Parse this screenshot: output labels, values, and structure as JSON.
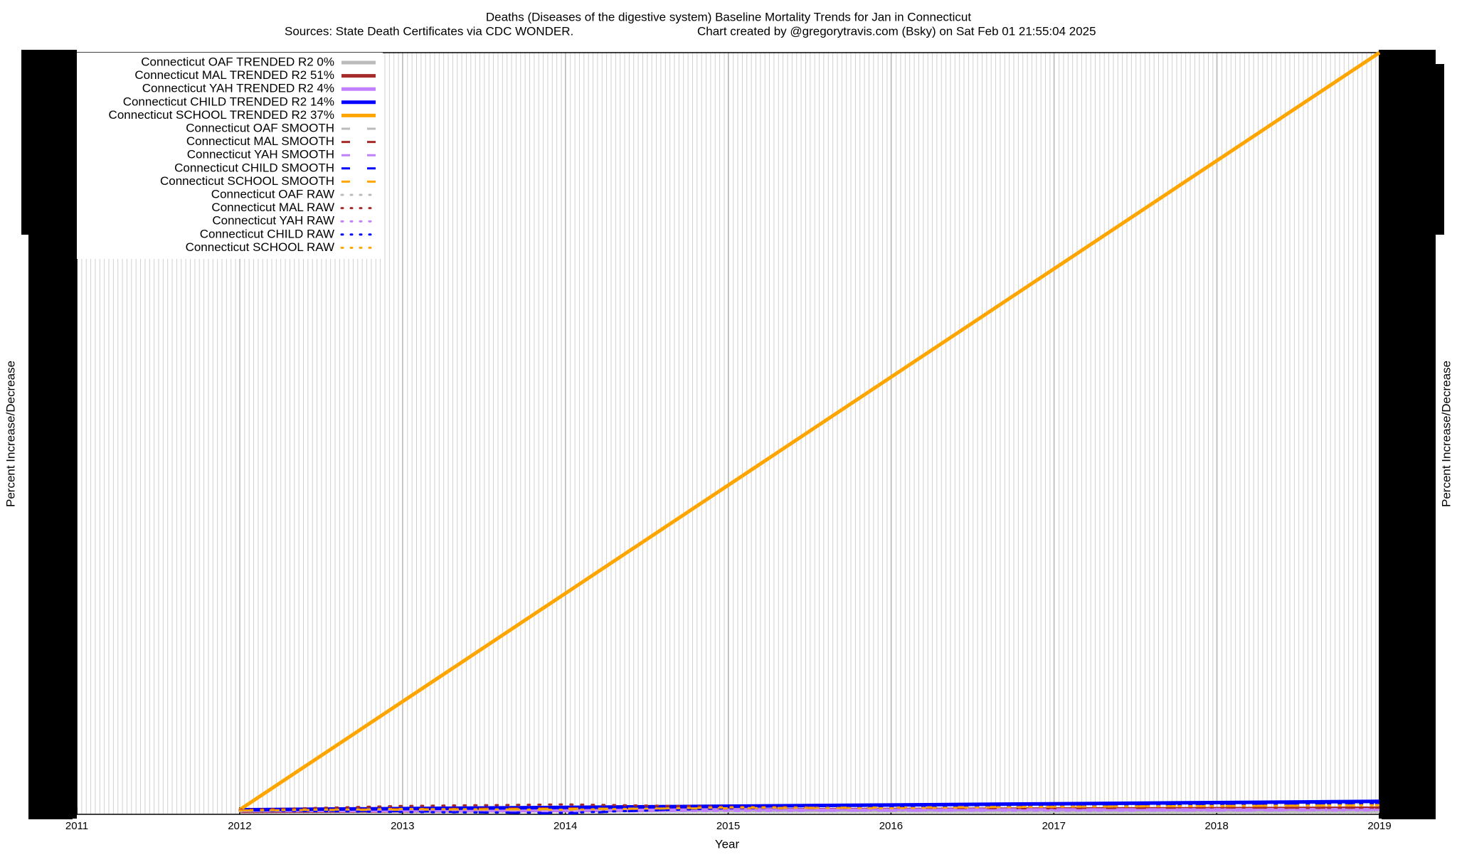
{
  "chart_data": {
    "type": "line",
    "title": "Deaths (Diseases of the digestive system)  Baseline Mortality Trends for Jan in Connecticut",
    "subtitle": "Sources: State Death Certificates via CDC WONDER.",
    "annotation": "Chart created by @gregorytravis.com (Bsky) on Sat Feb 01 21:55:04 2025",
    "x_label": "Year",
    "y_label": "Percent Increase/Decrease",
    "xlim": [
      2011,
      2019
    ],
    "xticks": [
      2011,
      2012,
      2013,
      2014,
      2015,
      2016,
      2017,
      2018,
      2019
    ],
    "ylim": [
      0,
      100
    ],
    "grid": true,
    "legend": "upper left",
    "series": [
      {
        "name": "Connecticut OAF TRENDED R2  0%",
        "color": "#bbbbbb",
        "style": "solid",
        "x": [
          2012,
          2019
        ],
        "values": [
          0.5,
          0.4
        ]
      },
      {
        "name": "Connecticut MAL TRENDED R2  51%",
        "color": "#a52a2a",
        "style": "solid",
        "x": [
          2012,
          2019
        ],
        "values": [
          0.4,
          0.8
        ]
      },
      {
        "name": "Connecticut YAH TRENDED R2  4%",
        "color": "#c080ff",
        "style": "solid",
        "x": [
          2012,
          2019
        ],
        "values": [
          0.5,
          0.6
        ]
      },
      {
        "name": "Connecticut CHILD TRENDED R2  14%",
        "color": "#0000ff",
        "style": "solid",
        "x": [
          2012,
          2019
        ],
        "values": [
          0.6,
          1.7
        ]
      },
      {
        "name": "Connecticut SCHOOL TRENDED R2  37%",
        "color": "#ffa500",
        "style": "solid",
        "x": [
          2012,
          2019
        ],
        "values": [
          0.6,
          100
        ]
      },
      {
        "name": "Connecticut OAF SMOOTH",
        "color": "#bbbbbb",
        "style": "dashed",
        "x": [
          2012,
          2013,
          2014,
          2015,
          2016,
          2017,
          2018,
          2019
        ],
        "values": [
          0.5,
          0.5,
          0.4,
          0.5,
          0.4,
          0.5,
          0.4,
          0.4
        ]
      },
      {
        "name": "Connecticut MAL SMOOTH",
        "color": "#a52a2a",
        "style": "dashed",
        "x": [
          2012,
          2013,
          2014,
          2015,
          2016,
          2017,
          2018,
          2019
        ],
        "values": [
          0.5,
          0.7,
          0.8,
          0.6,
          0.7,
          0.8,
          0.9,
          0.8
        ]
      },
      {
        "name": "Connecticut YAH SMOOTH",
        "color": "#c080ff",
        "style": "dashed",
        "x": [
          2012,
          2013,
          2014,
          2015,
          2016,
          2017,
          2018,
          2019
        ],
        "values": [
          0.5,
          0.4,
          0.3,
          0.5,
          0.6,
          0.5,
          0.6,
          0.6
        ]
      },
      {
        "name": "Connecticut CHILD SMOOTH",
        "color": "#0000ff",
        "style": "dashed",
        "x": [
          2012,
          2013,
          2014,
          2015,
          2016,
          2017,
          2018,
          2019
        ],
        "values": [
          0.5,
          0.4,
          0.1,
          0.9,
          1.0,
          1.1,
          1.3,
          1.5
        ]
      },
      {
        "name": "Connecticut SCHOOL SMOOTH",
        "color": "#ffa500",
        "style": "dashed",
        "x": [
          2012,
          2013,
          2014,
          2015,
          2016,
          2017,
          2018,
          2019
        ],
        "values": [
          0.5,
          0.6,
          0.7,
          0.8,
          0.9,
          1.0,
          1.1,
          1.2
        ]
      },
      {
        "name": "Connecticut OAF RAW",
        "color": "#bbbbbb",
        "style": "dotted",
        "x": [
          2012,
          2013,
          2014,
          2015,
          2016,
          2017,
          2018,
          2019
        ],
        "values": [
          0.4,
          0.6,
          0.5,
          0.4,
          0.5,
          0.4,
          0.5,
          0.4
        ]
      },
      {
        "name": "Connecticut MAL RAW",
        "color": "#a52a2a",
        "style": "dotted",
        "x": [
          2012,
          2013,
          2014,
          2015,
          2016,
          2017,
          2018,
          2019
        ],
        "values": [
          0.6,
          1.1,
          1.3,
          1.0,
          0.9,
          1.0,
          0.9,
          0.8
        ]
      },
      {
        "name": "Connecticut YAH RAW",
        "color": "#c080ff",
        "style": "dotted",
        "x": [
          2012,
          2013,
          2014,
          2015,
          2016,
          2017,
          2018,
          2019
        ],
        "values": [
          0.5,
          0.5,
          0.4,
          0.6,
          0.5,
          0.6,
          0.5,
          0.6
        ]
      },
      {
        "name": "Connecticut CHILD RAW",
        "color": "#0000ff",
        "style": "dotted",
        "x": [
          2012,
          2013,
          2014,
          2015,
          2016,
          2017,
          2018,
          2019
        ],
        "values": [
          0.5,
          0.3,
          0.2,
          0.8,
          1.0,
          1.1,
          1.2,
          1.4
        ]
      },
      {
        "name": "Connecticut SCHOOL RAW",
        "color": "#ffa500",
        "style": "dotted",
        "x": [
          2012,
          2013,
          2014,
          2015,
          2016,
          2017,
          2018,
          2019
        ],
        "values": [
          0.5,
          0.7,
          0.6,
          0.9,
          0.8,
          1.0,
          1.1,
          1.2
        ]
      }
    ]
  }
}
